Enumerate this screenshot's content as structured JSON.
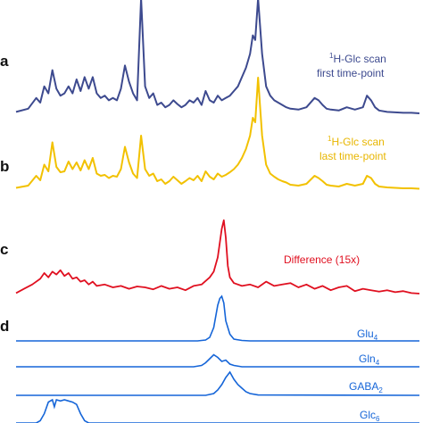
{
  "chart_data": [
    {
      "type": "line",
      "panel": "a",
      "x_range": [
        0,
        100
      ],
      "color": "#3d4a8f",
      "labels": [
        "1H-Glc scan",
        "first time-point"
      ],
      "series": [
        {
          "x": [
            0,
            3,
            5,
            6,
            7,
            8,
            9,
            10,
            11,
            12,
            13,
            14,
            15,
            16,
            17,
            18,
            19,
            20,
            21,
            22,
            23,
            24,
            25,
            26,
            27,
            28,
            29,
            30,
            31,
            32,
            33,
            34,
            35,
            36,
            37,
            38,
            39,
            40,
            41,
            42,
            43,
            44,
            45,
            46,
            47,
            48,
            49,
            50,
            51,
            52,
            53,
            54,
            55,
            56,
            57,
            58,
            58.7,
            59.3,
            60,
            61,
            62,
            63,
            64,
            65,
            66,
            67,
            68,
            70,
            72,
            74,
            75,
            76,
            77,
            78,
            80,
            82,
            84,
            86,
            87,
            88,
            89,
            90,
            92,
            94,
            96,
            98,
            100
          ],
          "y": [
            0.05,
            0.12,
            0.35,
            0.25,
            0.6,
            0.45,
            0.95,
            0.55,
            0.4,
            0.45,
            0.6,
            0.45,
            0.75,
            0.5,
            0.8,
            0.55,
            0.8,
            0.45,
            0.35,
            0.4,
            0.3,
            0.35,
            0.3,
            0.55,
            1.05,
            0.7,
            0.45,
            0.3,
            2.5,
            0.6,
            0.35,
            0.45,
            0.2,
            0.25,
            0.15,
            0.2,
            0.3,
            0.22,
            0.15,
            0.2,
            0.3,
            0.25,
            0.35,
            0.2,
            0.5,
            0.3,
            0.25,
            0.4,
            0.3,
            0.35,
            0.4,
            0.5,
            0.6,
            0.8,
            1.0,
            1.3,
            1.7,
            1.6,
            2.5,
            1.3,
            0.6,
            0.4,
            0.3,
            0.25,
            0.2,
            0.15,
            0.12,
            0.1,
            0.15,
            0.35,
            0.3,
            0.2,
            0.12,
            0.1,
            0.08,
            0.15,
            0.1,
            0.15,
            0.4,
            0.3,
            0.15,
            0.08,
            0.05,
            0.04,
            0.03,
            0.03,
            0.02
          ]
        }
      ]
    },
    {
      "type": "line",
      "panel": "b",
      "x_range": [
        0,
        100
      ],
      "color": "#f2c100",
      "labels": [
        "1H-Glc scan",
        "last time-point"
      ],
      "series": [
        {
          "x": [
            0,
            3,
            5,
            6,
            7,
            8,
            9,
            10,
            11,
            12,
            13,
            14,
            15,
            16,
            17,
            18,
            19,
            20,
            21,
            22,
            23,
            24,
            25,
            26,
            27,
            28,
            29,
            30,
            31,
            32,
            33,
            34,
            35,
            36,
            37,
            38,
            39,
            40,
            41,
            42,
            43,
            44,
            45,
            46,
            47,
            48,
            49,
            50,
            51,
            52,
            53,
            54,
            55,
            56,
            57,
            58,
            58.7,
            59.3,
            60,
            61,
            62,
            63,
            64,
            65,
            66,
            67,
            68,
            70,
            72,
            74,
            75,
            76,
            77,
            78,
            80,
            82,
            84,
            86,
            87,
            88,
            89,
            90,
            92,
            94,
            96,
            98,
            100
          ],
          "y": [
            0.03,
            0.08,
            0.3,
            0.2,
            0.55,
            0.4,
            1.05,
            0.5,
            0.38,
            0.4,
            0.62,
            0.45,
            0.6,
            0.42,
            0.65,
            0.45,
            0.7,
            0.35,
            0.3,
            0.32,
            0.25,
            0.3,
            0.28,
            0.45,
            0.95,
            0.6,
            0.35,
            0.25,
            1.2,
            0.45,
            0.3,
            0.35,
            0.18,
            0.22,
            0.12,
            0.18,
            0.28,
            0.2,
            0.12,
            0.18,
            0.25,
            0.2,
            0.3,
            0.18,
            0.4,
            0.28,
            0.22,
            0.35,
            0.28,
            0.32,
            0.38,
            0.45,
            0.55,
            0.7,
            0.9,
            1.2,
            1.6,
            1.5,
            2.5,
            1.2,
            0.55,
            0.35,
            0.28,
            0.22,
            0.18,
            0.15,
            0.1,
            0.08,
            0.12,
            0.3,
            0.25,
            0.18,
            0.1,
            0.08,
            0.06,
            0.12,
            0.08,
            0.12,
            0.3,
            0.25,
            0.12,
            0.06,
            0.04,
            0.03,
            0.02,
            0.02,
            0.01
          ]
        }
      ]
    },
    {
      "type": "line",
      "panel": "c",
      "x_range": [
        0,
        100
      ],
      "color": "#e01020",
      "labels": [
        "Difference (15x)"
      ],
      "series": [
        {
          "x": [
            0,
            2,
            4,
            6,
            7,
            8,
            9,
            10,
            11,
            12,
            13,
            14,
            15,
            16,
            17,
            18,
            19,
            20,
            22,
            24,
            26,
            28,
            30,
            32,
            34,
            36,
            38,
            40,
            42,
            44,
            46,
            48,
            49,
            50,
            51,
            51.5,
            52,
            52.5,
            53,
            54,
            56,
            58,
            60,
            62,
            64,
            66,
            68,
            70,
            72,
            74,
            76,
            78,
            80,
            82,
            84,
            86,
            88,
            90,
            92,
            94,
            96,
            98,
            100
          ],
          "y": [
            0.05,
            0.2,
            0.35,
            0.55,
            0.75,
            0.6,
            0.8,
            0.7,
            0.85,
            0.65,
            0.75,
            0.55,
            0.6,
            0.45,
            0.5,
            0.35,
            0.45,
            0.3,
            0.35,
            0.25,
            0.3,
            0.2,
            0.28,
            0.25,
            0.18,
            0.3,
            0.2,
            0.25,
            0.15,
            0.3,
            0.35,
            0.6,
            0.8,
            1.3,
            2.3,
            2.6,
            2.0,
            1.0,
            0.6,
            0.4,
            0.3,
            0.35,
            0.25,
            0.45,
            0.3,
            0.35,
            0.4,
            0.25,
            0.35,
            0.2,
            0.3,
            0.15,
            0.25,
            0.3,
            0.12,
            0.2,
            0.15,
            0.1,
            0.15,
            0.08,
            0.12,
            0.05,
            0.03
          ]
        }
      ]
    },
    {
      "type": "line",
      "panel": "d",
      "x_range": [
        0,
        100
      ],
      "color": "#1565d8",
      "series": [
        {
          "name": "Glu4",
          "x": [
            0,
            45,
            47,
            48,
            49,
            50,
            50.5,
            51,
            51.5,
            52,
            53,
            54,
            56,
            58,
            100
          ],
          "y": [
            0,
            0,
            0.02,
            0.08,
            0.3,
            0.8,
            0.95,
            1.0,
            0.85,
            0.45,
            0.15,
            0.04,
            0.01,
            0,
            0
          ]
        },
        {
          "name": "Gln4",
          "x": [
            0,
            44,
            46,
            47,
            48,
            49,
            50,
            51,
            52,
            53,
            54,
            56,
            100
          ],
          "y": [
            0,
            0,
            0.05,
            0.15,
            0.3,
            0.45,
            0.35,
            0.2,
            0.25,
            0.1,
            0.05,
            0,
            0
          ]
        },
        {
          "name": "GABA2",
          "x": [
            0,
            47,
            49,
            50,
            51,
            52,
            53,
            54,
            55,
            56,
            57,
            58,
            60,
            100
          ],
          "y": [
            0,
            0,
            0.05,
            0.15,
            0.3,
            0.5,
            0.65,
            0.45,
            0.3,
            0.2,
            0.1,
            0.05,
            0.01,
            0
          ]
        },
        {
          "name": "Glc6",
          "x": [
            0,
            5,
            6,
            7,
            8,
            9,
            9.5,
            10,
            11,
            12,
            13,
            14,
            15,
            16,
            17,
            18,
            100
          ],
          "y": [
            0,
            0,
            0.1,
            0.4,
            0.9,
            1.0,
            0.7,
            1.0,
            0.95,
            1.0,
            0.95,
            0.9,
            0.8,
            0.4,
            0.1,
            0,
            0
          ]
        }
      ]
    }
  ],
  "panels": {
    "a": {
      "letter": "a",
      "label_sup": "1",
      "label_line1": "H-Glc scan",
      "label_line2": "first time-point"
    },
    "b": {
      "letter": "b",
      "label_sup": "1",
      "label_line1": "H-Glc scan",
      "label_line2": "last time-point"
    },
    "c": {
      "letter": "c",
      "label_line1": "Difference (15x)"
    },
    "d": {
      "letter": "d",
      "traces": [
        {
          "base": "Glu",
          "sub": "4"
        },
        {
          "base": "Gln",
          "sub": "4"
        },
        {
          "base": "GABA",
          "sub": "2"
        },
        {
          "base": "Glc",
          "sub": "6"
        }
      ]
    }
  }
}
